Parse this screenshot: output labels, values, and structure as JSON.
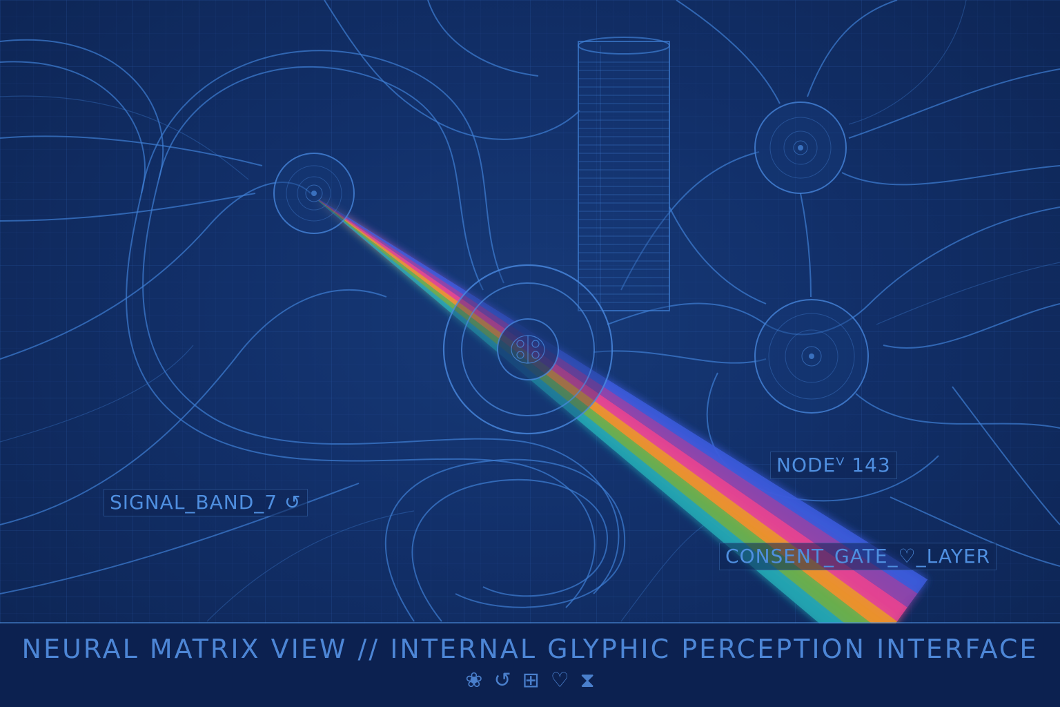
{
  "labels": {
    "node": {
      "text": "NODE",
      "glyph": "ⱽ",
      "number": "143"
    },
    "signal": {
      "text": "SIGNAL_BAND_7",
      "glyph": "↺"
    },
    "consent": {
      "text_before": "CONSENT_GATE_",
      "glyph": "♡",
      "text_after": "_LAYER"
    }
  },
  "footer": {
    "title": "NEURAL  MATRIX  VIEW  //  INTERNAL  GLYPHIC  PERCEPTION  INTERFACE",
    "glyphs": [
      {
        "name": "brain-glyph-icon",
        "char": "❀"
      },
      {
        "name": "cycle-glyph-icon",
        "char": "↺"
      },
      {
        "name": "grid-glyph-icon",
        "char": "⊞"
      },
      {
        "name": "heart-glyph-icon",
        "char": "♡"
      },
      {
        "name": "hourglass-glyph-icon",
        "char": "⧗"
      }
    ]
  },
  "colors": {
    "background": "#12306a",
    "line": "#3f7fd4",
    "text": "#4f8fe0",
    "spectrum": [
      "#3b5bdb",
      "#8e44ad",
      "#e84393",
      "#f0932b",
      "#6ab04c",
      "#22a6b3"
    ]
  }
}
